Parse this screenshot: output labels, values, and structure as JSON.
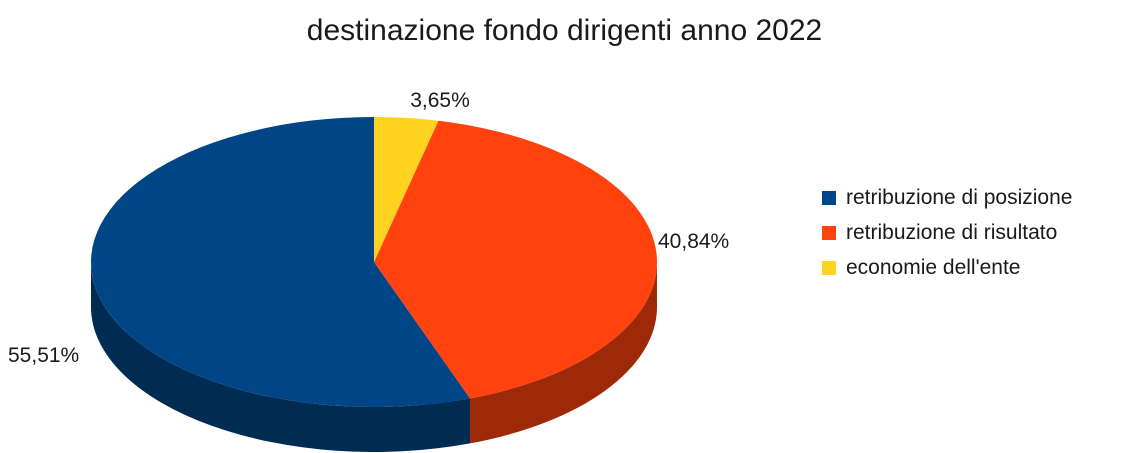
{
  "chart_data": {
    "type": "pie",
    "style": "3d",
    "title": "destinazione fondo dirigenti anno 2022",
    "categories": [
      "retribuzione di posizione",
      "retribuzione di risultato",
      "economie dell'ente"
    ],
    "values": [
      55.51,
      40.84,
      3.65
    ],
    "labels": [
      "55,51%",
      "40,84%",
      "3,65%"
    ],
    "colors": [
      "#004586",
      "#ff420e",
      "#ffd320"
    ],
    "legend_position": "right"
  }
}
